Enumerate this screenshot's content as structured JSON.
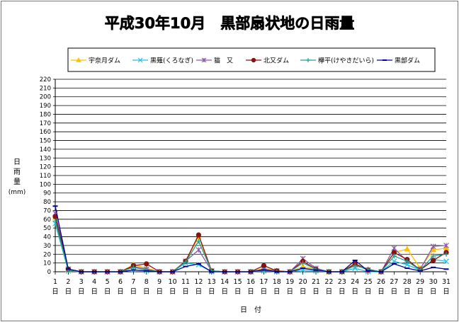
{
  "chart_data": {
    "type": "line",
    "title": "平成30年10月　黒部扇状地の日雨量",
    "ylabel_chars": [
      "日",
      "雨",
      "量"
    ],
    "yunit": "(mm)",
    "xlabel": "日　付",
    "ylim": [
      0,
      220
    ],
    "ytick_step": 10,
    "grid": true,
    "legend_position": "top",
    "categories": [
      "1",
      "2",
      "3",
      "4",
      "5",
      "6",
      "7",
      "8",
      "9",
      "10",
      "11",
      "12",
      "13",
      "14",
      "15",
      "16",
      "17",
      "18",
      "19",
      "20",
      "21",
      "22",
      "23",
      "24",
      "25",
      "26",
      "27",
      "28",
      "29",
      "30",
      "31"
    ],
    "category_suffix": "日",
    "series": [
      {
        "name": "宇奈月ダム",
        "color": "#ffc000",
        "marker": "triangle",
        "values": [
          62,
          2,
          0,
          0,
          0,
          0,
          8,
          4,
          0,
          0,
          12,
          40,
          1,
          0,
          0,
          0,
          4,
          1,
          0,
          6,
          3,
          0,
          0,
          10,
          1,
          0,
          22,
          26,
          4,
          25,
          27
        ]
      },
      {
        "name": "黒薙(くろなぎ)",
        "color": "#20c0e8",
        "marker": "x",
        "values": [
          55,
          1,
          0,
          0,
          0,
          0,
          2,
          1,
          0,
          0,
          10,
          8,
          0,
          0,
          0,
          0,
          1,
          0,
          0,
          2,
          1,
          0,
          0,
          4,
          0,
          0,
          12,
          8,
          2,
          14,
          12
        ]
      },
      {
        "name": "猫　又",
        "color": "#8a5aa8",
        "marker": "star",
        "values": [
          67,
          3,
          0,
          0,
          0,
          0,
          6,
          3,
          0,
          0,
          12,
          25,
          1,
          0,
          0,
          0,
          3,
          1,
          0,
          15,
          4,
          0,
          0,
          8,
          2,
          0,
          27,
          12,
          3,
          29,
          30
        ]
      },
      {
        "name": "北又ダム",
        "color": "#8b1010",
        "marker": "circle",
        "values": [
          63,
          3,
          0,
          0,
          0,
          0,
          7,
          9,
          0,
          0,
          12,
          42,
          1,
          0,
          0,
          0,
          7,
          1,
          0,
          12,
          3,
          0,
          0,
          9,
          2,
          0,
          22,
          14,
          2,
          13,
          22
        ]
      },
      {
        "name": "欅平(けやきだいら)",
        "color": "#20a090",
        "marker": "plus",
        "values": [
          58,
          2,
          0,
          0,
          0,
          0,
          5,
          2,
          0,
          0,
          11,
          35,
          1,
          0,
          0,
          0,
          2,
          0,
          0,
          10,
          3,
          0,
          0,
          7,
          3,
          0,
          18,
          12,
          2,
          18,
          20
        ]
      },
      {
        "name": "黒部ダム",
        "color": "#000090",
        "marker": "dash",
        "values": [
          75,
          3,
          0,
          0,
          0,
          0,
          2,
          1,
          0,
          0,
          6,
          9,
          0,
          0,
          0,
          0,
          2,
          0,
          0,
          4,
          2,
          0,
          0,
          13,
          1,
          0,
          9,
          4,
          1,
          5,
          3
        ]
      }
    ]
  }
}
